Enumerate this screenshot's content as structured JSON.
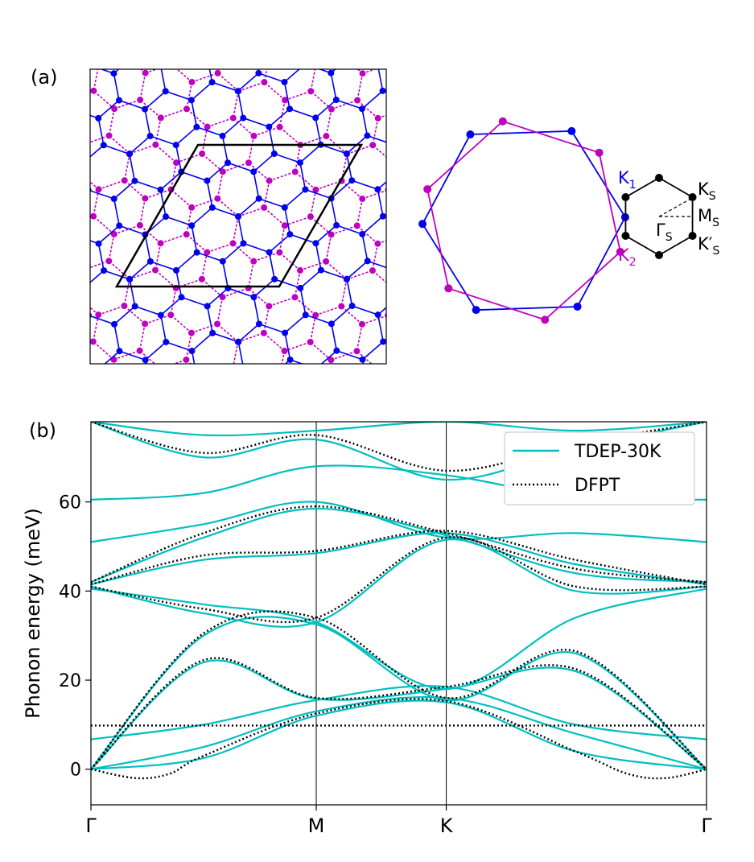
{
  "panel_a": {
    "label": "(a)",
    "colors": {
      "layer1": "#0000ee",
      "layer2": "#c000c0",
      "cell": "#000000"
    },
    "bz_labels": {
      "k1": "K",
      "k1_sub": "1",
      "k2": "K",
      "k2_sub": "2",
      "ks": "K",
      "ks_sub": "S",
      "ms": "M",
      "ms_sub": "S",
      "gs": "Γ",
      "gs_sub": "S",
      "ksp": "K′",
      "ksp_sub": "S"
    }
  },
  "chart_data": {
    "type": "line",
    "panel_label": "(b)",
    "title": "",
    "ylabel": "Phonon energy (meV)",
    "xlabel": "",
    "x_ticks": [
      {
        "label": "Γ",
        "pos": 0.0
      },
      {
        "label": "M",
        "pos": 1.0
      },
      {
        "label": "K",
        "pos": 1.577
      },
      {
        "label": "Γ",
        "pos": 2.732
      }
    ],
    "xlim": [
      0,
      2.732
    ],
    "ylim": [
      -8,
      78
    ],
    "y_ticks": [
      0,
      20,
      40,
      60
    ],
    "legend": {
      "position": "top-right"
    },
    "series": [
      {
        "name": "TDEP-30K",
        "color": "#00bfbf",
        "style": "solid",
        "bands": [
          {
            "x": [
              0,
              0.5,
              1.0,
              1.577,
              2.15,
              2.732
            ],
            "y": [
              0,
              2.5,
              12,
              15,
              4,
              0
            ]
          },
          {
            "x": [
              0,
              0.5,
              1.0,
              1.577,
              2.15,
              2.732
            ],
            "y": [
              0,
              5,
              13,
              16,
              8,
              0
            ]
          },
          {
            "x": [
              0,
              0.5,
              1.0,
              1.577,
              2.15,
              2.732
            ],
            "y": [
              0,
              24,
              15.8,
              18,
              22,
              0
            ]
          },
          {
            "x": [
              0,
              0.5,
              1.0,
              1.577,
              2.15,
              2.732
            ],
            "y": [
              0,
              30,
              32.5,
              15.5,
              26,
              0
            ]
          },
          {
            "x": [
              0,
              0.5,
              1.0,
              1.577,
              2.15,
              2.732
            ],
            "y": [
              6.7,
              10,
              15.5,
              18.5,
              10,
              6.7
            ]
          },
          {
            "x": [
              0,
              0.5,
              1.0,
              1.577,
              2.15,
              2.732
            ],
            "y": [
              40.5,
              37,
              33,
              18,
              34,
              40.5
            ]
          },
          {
            "x": [
              0,
              0.5,
              1.0,
              1.577,
              2.15,
              2.732
            ],
            "y": [
              41,
              35,
              33,
              51.5,
              40,
              41
            ]
          },
          {
            "x": [
              0,
              0.5,
              1.0,
              1.577,
              2.15,
              2.732
            ],
            "y": [
              42,
              52,
              58.5,
              52.5,
              44,
              42
            ]
          },
          {
            "x": [
              0,
              0.5,
              1.0,
              1.577,
              2.15,
              2.732
            ],
            "y": [
              41.5,
              47,
              48.5,
              53,
              46,
              41.5
            ]
          },
          {
            "x": [
              0,
              0.5,
              1.0,
              1.577,
              2.15,
              2.732
            ],
            "y": [
              51,
              55,
              60,
              52,
              53,
              51
            ]
          },
          {
            "x": [
              0,
              0.5,
              1.0,
              1.577,
              2.15,
              2.732
            ],
            "y": [
              60.5,
              62,
              68,
              66,
              61,
              60.5
            ]
          },
          {
            "x": [
              0,
              0.5,
              1.0,
              1.577,
              2.15,
              2.732
            ],
            "y": [
              78,
              70,
              74,
              65,
              72,
              78
            ]
          },
          {
            "x": [
              0,
              0.5,
              1.0,
              1.577,
              2.15,
              2.732
            ],
            "y": [
              78,
              75,
              76,
              78,
              76,
              78
            ]
          }
        ]
      },
      {
        "name": "DFPT",
        "color": "#000000",
        "style": "dotted",
        "bands": [
          {
            "x": [
              0,
              0.2,
              0.35,
              0.5,
              1.0,
              1.577,
              2.15,
              2.38,
              2.55,
              2.732
            ],
            "y": [
              0,
              -2,
              -1,
              3,
              12.5,
              15.3,
              4,
              -1,
              -2,
              0
            ]
          },
          {
            "x": [
              0,
              0.5,
              1.0,
              1.577,
              2.15,
              2.732
            ],
            "y": [
              9.8,
              9.8,
              9.8,
              9.8,
              9.8,
              9.8
            ]
          },
          {
            "x": [
              0,
              0.5,
              1.0,
              1.577,
              2.15,
              2.732
            ],
            "y": [
              0,
              24.5,
              16,
              18.5,
              22.5,
              0
            ]
          },
          {
            "x": [
              0,
              0.5,
              1.0,
              1.577,
              2.15,
              2.732
            ],
            "y": [
              0,
              30.5,
              34,
              16,
              26.5,
              0
            ]
          },
          {
            "x": [
              0,
              0.5,
              1.0,
              1.577,
              2.15,
              2.732
            ],
            "y": [
              41,
              36,
              34,
              52,
              41,
              41
            ]
          },
          {
            "x": [
              0,
              0.5,
              1.0,
              1.577,
              2.15,
              2.732
            ],
            "y": [
              42,
              53,
              59,
              53,
              45,
              42
            ]
          },
          {
            "x": [
              0,
              0.5,
              1.0,
              1.577,
              2.15,
              2.732
            ],
            "y": [
              41.5,
              48,
              49,
              53.5,
              47,
              41.5
            ]
          },
          {
            "x": [
              0,
              0.5,
              1.0,
              1.577,
              2.15,
              2.732
            ],
            "y": [
              78,
              71,
              75,
              67,
              73,
              78
            ]
          }
        ]
      }
    ]
  }
}
